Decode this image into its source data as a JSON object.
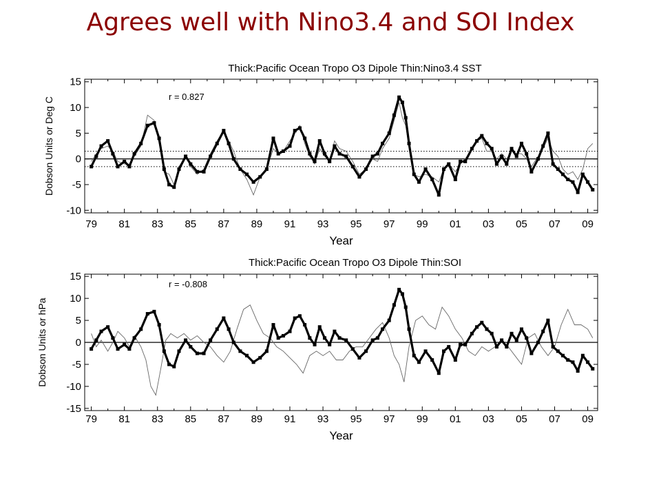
{
  "slide": {
    "title": "Agrees well with Nino3.4 and SOI Index"
  },
  "colors": {
    "title": "#8b0000",
    "ink": "#000000",
    "thin": "#666666"
  },
  "chart_data": [
    {
      "type": "line",
      "title": "Thick:Pacific Ocean Tropo O3 Dipole      Thin:Nino3.4 SST",
      "xlabel": "Year",
      "ylabel": "Dobson Units or Deg C",
      "annotation": "r =   0.827",
      "x_ticks": [
        1979,
        1981,
        1983,
        1985,
        1987,
        1989,
        1991,
        1993,
        1995,
        1997,
        1999,
        2001,
        2003,
        2005,
        2007,
        2009
      ],
      "x_tick_labels": [
        "79",
        "81",
        "83",
        "85",
        "87",
        "89",
        "91",
        "93",
        "95",
        "97",
        "99",
        "01",
        "03",
        "05",
        "07",
        "09"
      ],
      "y_ticks": [
        -10,
        -5,
        0,
        5,
        10,
        15
      ],
      "y_tick_labels": [
        "-10",
        "-5",
        "0",
        "5",
        "10",
        "15"
      ],
      "xlim": [
        1978.6,
        2009.6
      ],
      "ylim": [
        -10.5,
        15.5
      ],
      "reference_lines": [
        {
          "y": 0,
          "style": "solid"
        },
        {
          "y": 1.5,
          "style": "dotted"
        },
        {
          "y": -1.5,
          "style": "dotted"
        }
      ],
      "series": [
        {
          "style": "thick",
          "x": [
            1979.0,
            1979.3,
            1979.6,
            1980.0,
            1980.3,
            1980.6,
            1981.0,
            1981.3,
            1981.6,
            1982.0,
            1982.4,
            1982.8,
            1983.1,
            1983.4,
            1983.7,
            1984.0,
            1984.3,
            1984.7,
            1985.0,
            1985.4,
            1985.8,
            1986.2,
            1986.6,
            1987.0,
            1987.3,
            1987.6,
            1988.0,
            1988.4,
            1988.8,
            1989.2,
            1989.6,
            1990.0,
            1990.3,
            1990.6,
            1991.0,
            1991.3,
            1991.6,
            1991.9,
            1992.2,
            1992.5,
            1992.8,
            1993.1,
            1993.4,
            1993.7,
            1994.0,
            1994.4,
            1994.8,
            1995.2,
            1995.6,
            1996.0,
            1996.3,
            1996.6,
            1997.0,
            1997.3,
            1997.6,
            1997.8,
            1998.0,
            1998.2,
            1998.5,
            1998.8,
            1999.2,
            1999.6,
            2000.0,
            2000.3,
            2000.6,
            2001.0,
            2001.3,
            2001.6,
            2002.0,
            2002.3,
            2002.6,
            2002.9,
            2003.2,
            2003.5,
            2003.8,
            2004.1,
            2004.4,
            2004.7,
            2005.0,
            2005.3,
            2005.6,
            2006.0,
            2006.3,
            2006.6,
            2006.9,
            2007.2,
            2007.5,
            2007.8,
            2008.1,
            2008.4,
            2008.7,
            2009.0,
            2009.3
          ],
          "y": [
            -1.5,
            0.5,
            2.5,
            3.5,
            1.0,
            -1.5,
            -0.5,
            -1.5,
            1.0,
            3.0,
            6.5,
            7.0,
            4.0,
            -2.0,
            -5.0,
            -5.5,
            -2.0,
            0.5,
            -1.0,
            -2.5,
            -2.5,
            0.5,
            3.0,
            5.5,
            3.0,
            0.0,
            -2.0,
            -3.0,
            -4.5,
            -3.5,
            -2.0,
            4.0,
            1.0,
            1.5,
            2.5,
            5.5,
            6.0,
            4.0,
            1.0,
            -0.5,
            3.5,
            1.0,
            -0.5,
            2.5,
            1.0,
            0.5,
            -1.5,
            -3.5,
            -2.0,
            0.5,
            1.0,
            3.0,
            5.0,
            8.5,
            12.0,
            11.0,
            8.0,
            3.0,
            -3.0,
            -4.5,
            -2.0,
            -4.0,
            -7.0,
            -2.0,
            -1.0,
            -4.0,
            -0.5,
            -0.5,
            2.0,
            3.5,
            4.5,
            3.0,
            2.0,
            -1.0,
            0.5,
            -1.0,
            2.0,
            0.5,
            3.0,
            1.0,
            -2.5,
            0.0,
            2.5,
            5.0,
            -1.0,
            -2.0,
            -3.0,
            -4.0,
            -4.5,
            -6.5,
            -3.0,
            -4.5,
            -6.0
          ]
        },
        {
          "style": "thin",
          "x": [
            1979.0,
            1979.3,
            1979.6,
            1980.0,
            1980.3,
            1980.6,
            1981.0,
            1981.3,
            1981.6,
            1982.0,
            1982.4,
            1982.8,
            1983.1,
            1983.4,
            1983.7,
            1984.0,
            1984.3,
            1984.7,
            1985.0,
            1985.4,
            1985.8,
            1986.2,
            1986.6,
            1987.0,
            1987.3,
            1987.6,
            1988.0,
            1988.4,
            1988.8,
            1989.2,
            1989.6,
            1990.0,
            1990.3,
            1990.6,
            1991.0,
            1991.3,
            1991.6,
            1991.9,
            1992.2,
            1992.5,
            1992.8,
            1993.1,
            1993.4,
            1993.7,
            1994.0,
            1994.4,
            1994.8,
            1995.2,
            1995.6,
            1996.0,
            1996.3,
            1996.6,
            1997.0,
            1997.3,
            1997.6,
            1997.8,
            1998.0,
            1998.2,
            1998.5,
            1998.8,
            1999.2,
            1999.6,
            2000.0,
            2000.3,
            2000.6,
            2001.0,
            2001.3,
            2001.6,
            2002.0,
            2002.3,
            2002.6,
            2002.9,
            2003.2,
            2003.5,
            2003.8,
            2004.1,
            2004.4,
            2004.7,
            2005.0,
            2005.3,
            2005.6,
            2006.0,
            2006.3,
            2006.6,
            2006.9,
            2007.2,
            2007.5,
            2007.8,
            2008.1,
            2008.4,
            2008.7,
            2009.0,
            2009.3
          ],
          "y": [
            -0.5,
            1.0,
            2.0,
            2.5,
            1.5,
            -0.5,
            -1.0,
            -1.0,
            0.5,
            2.5,
            8.5,
            7.5,
            3.0,
            -2.5,
            -3.0,
            -5.0,
            -1.5,
            0.5,
            -1.5,
            -3.0,
            -2.0,
            1.0,
            3.5,
            5.5,
            3.5,
            1.5,
            -2.0,
            -4.0,
            -7.0,
            -3.5,
            -2.0,
            2.0,
            1.0,
            1.5,
            3.5,
            5.0,
            6.5,
            3.0,
            0.5,
            -1.0,
            2.0,
            0.5,
            -0.5,
            3.5,
            2.0,
            1.5,
            -0.5,
            -3.0,
            -2.0,
            0.0,
            -0.5,
            2.0,
            4.0,
            7.5,
            11.0,
            8.0,
            6.5,
            2.5,
            -3.0,
            -3.5,
            -3.0,
            -3.5,
            -4.5,
            -2.0,
            -1.0,
            -2.5,
            -1.0,
            0.0,
            2.0,
            3.5,
            4.0,
            1.5,
            1.5,
            0.0,
            1.0,
            0.0,
            1.5,
            1.0,
            1.0,
            0.0,
            -1.5,
            0.5,
            2.0,
            4.0,
            1.5,
            0.5,
            -2.0,
            -3.0,
            -2.5,
            -4.0,
            -2.0,
            2.0,
            3.0
          ]
        }
      ]
    },
    {
      "type": "line",
      "title": "Thick:Pacific Ocean Tropo O3 Dipole      Thin:SOI",
      "xlabel": "Year",
      "ylabel": "Dobson Units or hPa",
      "annotation": "r =  -0.808",
      "x_ticks": [
        1979,
        1981,
        1983,
        1985,
        1987,
        1989,
        1991,
        1993,
        1995,
        1997,
        1999,
        2001,
        2003,
        2005,
        2007,
        2009
      ],
      "x_tick_labels": [
        "79",
        "81",
        "83",
        "85",
        "87",
        "89",
        "91",
        "93",
        "95",
        "97",
        "99",
        "01",
        "03",
        "05",
        "07",
        "09"
      ],
      "y_ticks": [
        -15,
        -10,
        -5,
        0,
        5,
        10,
        15
      ],
      "y_tick_labels": [
        "-15",
        "-10",
        "-5",
        "0",
        "5",
        "10",
        "15"
      ],
      "xlim": [
        1978.6,
        2009.6
      ],
      "ylim": [
        -15.5,
        15.5
      ],
      "reference_lines": [
        {
          "y": 0,
          "style": "solid"
        }
      ],
      "series": [
        {
          "style": "thick",
          "x": [
            1979.0,
            1979.3,
            1979.6,
            1980.0,
            1980.3,
            1980.6,
            1981.0,
            1981.3,
            1981.6,
            1982.0,
            1982.4,
            1982.8,
            1983.1,
            1983.4,
            1983.7,
            1984.0,
            1984.3,
            1984.7,
            1985.0,
            1985.4,
            1985.8,
            1986.2,
            1986.6,
            1987.0,
            1987.3,
            1987.6,
            1988.0,
            1988.4,
            1988.8,
            1989.2,
            1989.6,
            1990.0,
            1990.3,
            1990.6,
            1991.0,
            1991.3,
            1991.6,
            1991.9,
            1992.2,
            1992.5,
            1992.8,
            1993.1,
            1993.4,
            1993.7,
            1994.0,
            1994.4,
            1994.8,
            1995.2,
            1995.6,
            1996.0,
            1996.3,
            1996.6,
            1997.0,
            1997.3,
            1997.6,
            1997.8,
            1998.0,
            1998.2,
            1998.5,
            1998.8,
            1999.2,
            1999.6,
            2000.0,
            2000.3,
            2000.6,
            2001.0,
            2001.3,
            2001.6,
            2002.0,
            2002.3,
            2002.6,
            2002.9,
            2003.2,
            2003.5,
            2003.8,
            2004.1,
            2004.4,
            2004.7,
            2005.0,
            2005.3,
            2005.6,
            2006.0,
            2006.3,
            2006.6,
            2006.9,
            2007.2,
            2007.5,
            2007.8,
            2008.1,
            2008.4,
            2008.7,
            2009.0,
            2009.3
          ],
          "y": [
            -1.5,
            0.5,
            2.5,
            3.5,
            1.0,
            -1.5,
            -0.5,
            -1.5,
            1.0,
            3.0,
            6.5,
            7.0,
            4.0,
            -2.0,
            -5.0,
            -5.5,
            -2.0,
            0.5,
            -1.0,
            -2.5,
            -2.5,
            0.5,
            3.0,
            5.5,
            3.0,
            0.0,
            -2.0,
            -3.0,
            -4.5,
            -3.5,
            -2.0,
            4.0,
            1.0,
            1.5,
            2.5,
            5.5,
            6.0,
            4.0,
            1.0,
            -0.5,
            3.5,
            1.0,
            -0.5,
            2.5,
            1.0,
            0.5,
            -1.5,
            -3.5,
            -2.0,
            0.5,
            1.0,
            3.0,
            5.0,
            8.5,
            12.0,
            11.0,
            8.0,
            3.0,
            -3.0,
            -4.5,
            -2.0,
            -4.0,
            -7.0,
            -2.0,
            -1.0,
            -4.0,
            -0.5,
            -0.5,
            2.0,
            3.5,
            4.5,
            3.0,
            2.0,
            -1.0,
            0.5,
            -1.0,
            2.0,
            0.5,
            3.0,
            1.0,
            -2.5,
            0.0,
            2.5,
            5.0,
            -1.0,
            -2.0,
            -3.0,
            -4.0,
            -4.5,
            -6.5,
            -3.0,
            -4.5,
            -6.0
          ]
        },
        {
          "style": "thin",
          "x": [
            1979.0,
            1979.3,
            1979.6,
            1980.0,
            1980.3,
            1980.6,
            1981.0,
            1981.3,
            1981.6,
            1982.0,
            1982.3,
            1982.6,
            1982.9,
            1983.2,
            1983.5,
            1983.8,
            1984.2,
            1984.6,
            1985.0,
            1985.4,
            1985.8,
            1986.2,
            1986.6,
            1987.0,
            1987.4,
            1987.8,
            1988.2,
            1988.6,
            1989.0,
            1989.4,
            1989.8,
            1990.2,
            1990.6,
            1991.0,
            1991.4,
            1991.8,
            1992.2,
            1992.6,
            1993.0,
            1993.4,
            1993.8,
            1994.2,
            1994.6,
            1995.0,
            1995.4,
            1995.8,
            1996.2,
            1996.6,
            1997.0,
            1997.3,
            1997.6,
            1997.9,
            1998.2,
            1998.6,
            1999.0,
            1999.4,
            1999.8,
            2000.2,
            2000.6,
            2001.0,
            2001.4,
            2001.8,
            2002.2,
            2002.6,
            2003.0,
            2003.4,
            2003.8,
            2004.2,
            2004.6,
            2005.0,
            2005.4,
            2005.8,
            2006.2,
            2006.6,
            2007.0,
            2007.4,
            2007.8,
            2008.2,
            2008.6,
            2009.0,
            2009.3
          ],
          "y": [
            2.0,
            -1.0,
            0.5,
            -2.0,
            0.0,
            2.5,
            1.0,
            -1.0,
            1.5,
            -1.0,
            -4.0,
            -10.0,
            -12.0,
            -6.0,
            0.5,
            2.0,
            1.0,
            2.0,
            0.5,
            1.5,
            0.0,
            -1.0,
            -3.0,
            -4.5,
            -2.0,
            3.0,
            7.5,
            8.5,
            5.0,
            2.0,
            1.0,
            -1.0,
            -2.0,
            -3.5,
            -5.0,
            -7.0,
            -3.0,
            -2.0,
            -3.0,
            -2.0,
            -4.0,
            -4.0,
            -2.0,
            -1.0,
            -1.0,
            1.0,
            3.0,
            4.5,
            1.0,
            -3.0,
            -5.0,
            -9.0,
            -1.0,
            5.0,
            6.0,
            4.0,
            3.0,
            8.0,
            6.0,
            3.0,
            1.0,
            -2.0,
            -3.0,
            -1.0,
            -2.0,
            -1.0,
            0.0,
            -1.0,
            -3.0,
            -5.0,
            1.0,
            2.0,
            -1.0,
            -3.0,
            -1.0,
            4.0,
            7.5,
            4.0,
            4.0,
            3.0,
            1.0
          ]
        }
      ]
    }
  ]
}
